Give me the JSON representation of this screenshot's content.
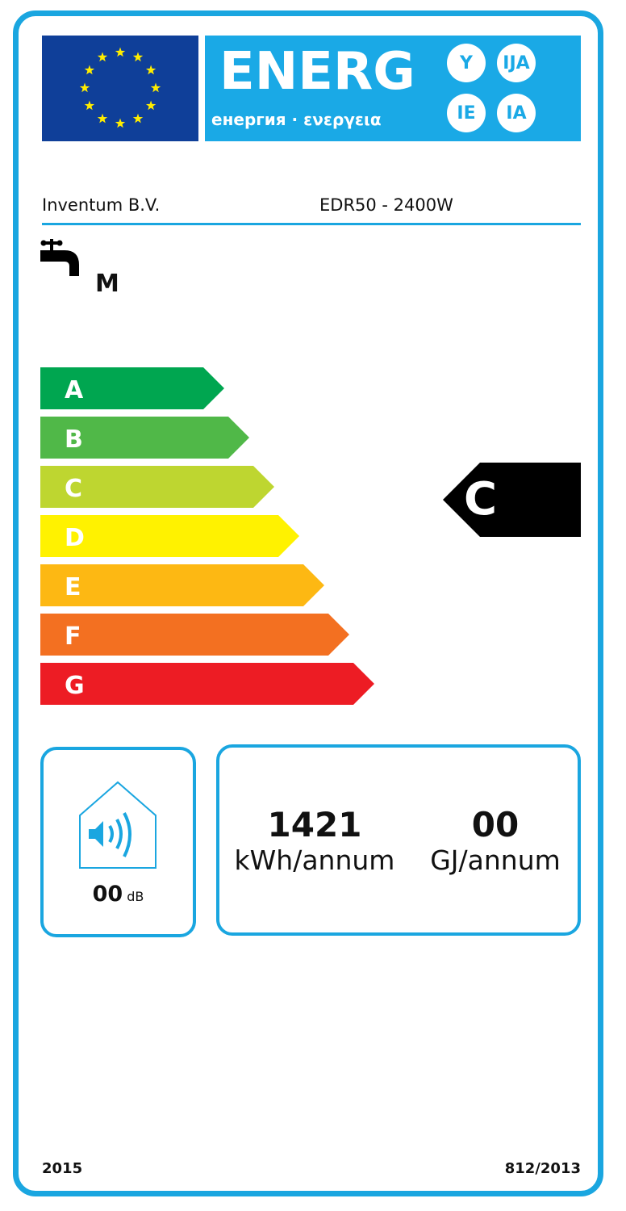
{
  "header": {
    "title": "ENERG",
    "subtitle": "енергия · ενεργεια",
    "suffixes": [
      "Y",
      "IJA",
      "IE",
      "IA"
    ],
    "flag_icon": "eu-flag-icon",
    "colors": {
      "flag_blue": "#0f3f99",
      "band_cyan": "#1aa9e6",
      "star_yellow": "#ffed00"
    }
  },
  "supplier": "Inventum B.V.",
  "model": "EDR50 - 2400W",
  "load_profile": {
    "icon": "water-tap-icon",
    "label": "M"
  },
  "scale": [
    {
      "label": "A",
      "color": "#00a650"
    },
    {
      "label": "B",
      "color": "#50b848"
    },
    {
      "label": "C",
      "color": "#bed630"
    },
    {
      "label": "D",
      "color": "#fff200"
    },
    {
      "label": "E",
      "color": "#fdb813"
    },
    {
      "label": "F",
      "color": "#f37021"
    },
    {
      "label": "G",
      "color": "#ed1c24"
    }
  ],
  "rating": {
    "label": "C",
    "index": 2
  },
  "noise": {
    "icon": "sound-house-icon",
    "value": "00",
    "unit": "dB"
  },
  "consumption": {
    "electricity_value": "1421",
    "electricity_unit": "kWh/annum",
    "fuel_value": "00",
    "fuel_unit": "GJ/annum"
  },
  "footer": {
    "year": "2015",
    "regulation": "812/2013"
  }
}
